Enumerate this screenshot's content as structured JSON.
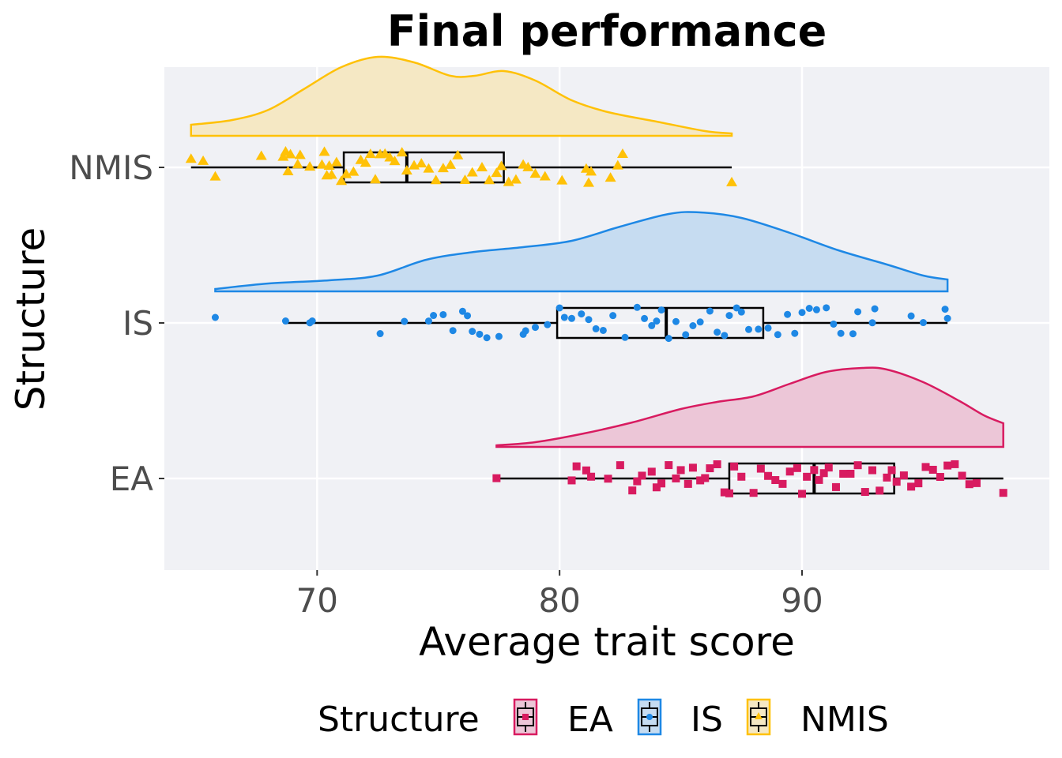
{
  "chart_data": {
    "type": "raincloud",
    "title": "Final performance",
    "xlabel": "Average trait score",
    "ylabel": "Structure",
    "xlim": [
      63.7,
      100.2
    ],
    "x_ticks": [
      70,
      80,
      90
    ],
    "x_tick_labels": [
      "70",
      "80",
      "90"
    ],
    "categories": [
      "EA",
      "IS",
      "NMIS"
    ],
    "grid": true,
    "legend": {
      "title": "Structure",
      "position": "bottom",
      "entries": [
        "EA",
        "IS",
        "NMIS"
      ]
    },
    "series": [
      {
        "name": "EA",
        "color": "#D81B60",
        "fill": "#ECC6D7",
        "marker": "square",
        "box": {
          "whisker_low": 77.4,
          "q1": 87.0,
          "median": 90.5,
          "q3": 93.8,
          "whisker_high": 98.3
        },
        "density": {
          "x": [
            77.4,
            79,
            81,
            83,
            85,
            86.5,
            88,
            89.5,
            91,
            92.5,
            93.5,
            95,
            96.5,
            97.5,
            98.3
          ],
          "y": [
            0.02,
            0.06,
            0.17,
            0.31,
            0.48,
            0.57,
            0.64,
            0.8,
            0.95,
            1.0,
            0.98,
            0.82,
            0.58,
            0.4,
            0.3
          ]
        },
        "points": [
          77.4,
          80.5,
          80.7,
          81.1,
          81.3,
          82.0,
          82.5,
          83.0,
          83.2,
          83.4,
          83.8,
          84.0,
          84.2,
          84.5,
          84.8,
          85.0,
          85.3,
          85.5,
          85.8,
          86.0,
          86.2,
          86.5,
          86.8,
          87.0,
          87.2,
          87.5,
          88.0,
          88.3,
          88.6,
          88.9,
          89.2,
          89.5,
          89.8,
          90.0,
          90.2,
          90.5,
          90.7,
          90.9,
          91.1,
          91.4,
          91.7,
          92.0,
          92.3,
          92.6,
          92.9,
          93.2,
          93.5,
          93.7,
          93.9,
          94.2,
          94.5,
          94.8,
          95.1,
          95.4,
          95.7,
          96.0,
          96.3,
          96.6,
          96.9,
          97.2,
          98.3
        ]
      },
      {
        "name": "IS",
        "color": "#1E88E5",
        "fill": "#C6DCF1",
        "marker": "circle",
        "box": {
          "whisker_low": 68.7,
          "q1": 79.9,
          "median": 84.4,
          "q3": 88.4,
          "whisker_high": 96.0
        },
        "density": {
          "x": [
            65.8,
            68,
            70.5,
            72.5,
            74.5,
            76.5,
            78.5,
            80.5,
            82.5,
            84.5,
            85.8,
            87.5,
            89.5,
            91.5,
            93.5,
            95,
            96.0
          ],
          "y": [
            0.03,
            0.1,
            0.14,
            0.2,
            0.4,
            0.5,
            0.56,
            0.64,
            0.82,
            0.98,
            1.0,
            0.93,
            0.74,
            0.52,
            0.34,
            0.2,
            0.15
          ]
        },
        "points": [
          65.8,
          68.7,
          69.7,
          69.8,
          72.6,
          73.6,
          74.6,
          74.8,
          75.2,
          75.6,
          76.0,
          76.2,
          76.4,
          76.7,
          77.0,
          77.5,
          78.5,
          78.6,
          79.0,
          79.5,
          80.0,
          80.2,
          80.5,
          80.9,
          81.2,
          81.5,
          81.8,
          82.2,
          82.7,
          83.2,
          83.5,
          83.8,
          84.0,
          84.2,
          84.5,
          84.8,
          85.2,
          85.5,
          85.8,
          86.2,
          86.5,
          86.8,
          87.0,
          87.3,
          87.5,
          87.8,
          88.2,
          88.6,
          89.0,
          89.4,
          89.7,
          90.0,
          90.3,
          90.6,
          91.0,
          91.3,
          91.6,
          92.1,
          92.3,
          92.9,
          93.0,
          94.5,
          95.0,
          95.9,
          96.0
        ]
      },
      {
        "name": "NMIS",
        "color": "#FFC107",
        "fill": "#F5E8C4",
        "marker": "triangle",
        "box": {
          "whisker_low": 64.8,
          "q1": 71.1,
          "median": 73.7,
          "q3": 77.7,
          "whisker_high": 87.1
        },
        "density": {
          "x": [
            64.8,
            66.5,
            68,
            69.5,
            71,
            72.5,
            74,
            75.5,
            76.5,
            77.7,
            79,
            80.5,
            82,
            84,
            86,
            87.1
          ],
          "y": [
            0.14,
            0.2,
            0.33,
            0.6,
            0.87,
            1.0,
            0.93,
            0.76,
            0.76,
            0.82,
            0.7,
            0.45,
            0.3,
            0.18,
            0.06,
            0.03
          ]
        },
        "points": [
          64.8,
          65.3,
          65.8,
          67.7,
          68.6,
          68.7,
          68.8,
          68.9,
          69.2,
          69.3,
          69.7,
          70.2,
          70.3,
          70.4,
          70.5,
          70.6,
          70.8,
          71.0,
          71.2,
          71.5,
          71.8,
          72.0,
          72.2,
          72.4,
          72.6,
          72.8,
          73.0,
          73.2,
          73.5,
          73.7,
          74.0,
          74.3,
          74.6,
          74.9,
          75.2,
          75.5,
          75.8,
          76.1,
          76.4,
          76.8,
          77.1,
          77.4,
          77.6,
          77.9,
          78.2,
          78.5,
          78.7,
          79.0,
          79.4,
          80.1,
          81.1,
          81.2,
          81.3,
          82.1,
          82.4,
          82.6,
          87.1
        ]
      }
    ]
  }
}
